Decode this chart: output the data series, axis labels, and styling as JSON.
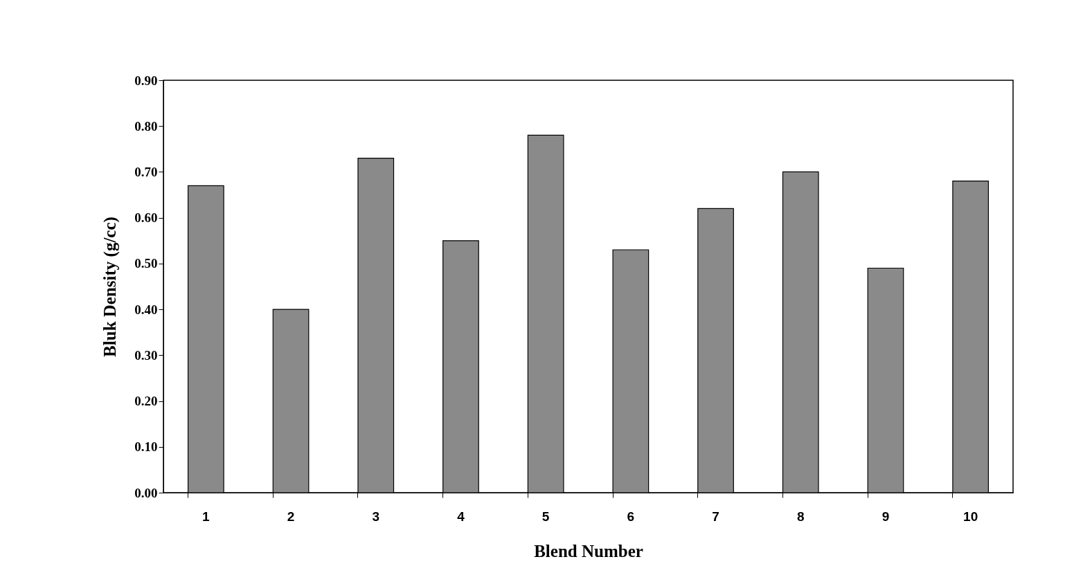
{
  "chart_data": {
    "type": "bar",
    "xlabel": "Blend Number",
    "ylabel": "Bluk Density (g/cc)",
    "categories": [
      "1",
      "2",
      "3",
      "4",
      "5",
      "6",
      "7",
      "8",
      "9",
      "10"
    ],
    "values": [
      0.67,
      0.4,
      0.73,
      0.55,
      0.78,
      0.53,
      0.62,
      0.7,
      0.49,
      0.68
    ],
    "color": "#8a8a8a",
    "ylim": [
      0,
      0.9
    ],
    "yticks": [
      {
        "value": 0,
        "label": "0.00"
      },
      {
        "value": 0.1,
        "label": "0.10"
      },
      {
        "value": 0.2,
        "label": "0.20"
      },
      {
        "value": 0.3,
        "label": "0.30"
      },
      {
        "value": 0.4,
        "label": "0.40"
      },
      {
        "value": 0.5,
        "label": "0.50"
      },
      {
        "value": 0.6,
        "label": "0.60"
      },
      {
        "value": 0.7,
        "label": "0.70"
      },
      {
        "value": 0.8,
        "label": "0.80"
      },
      {
        "value": 0.9,
        "label": "0.90"
      }
    ],
    "grid": false
  }
}
